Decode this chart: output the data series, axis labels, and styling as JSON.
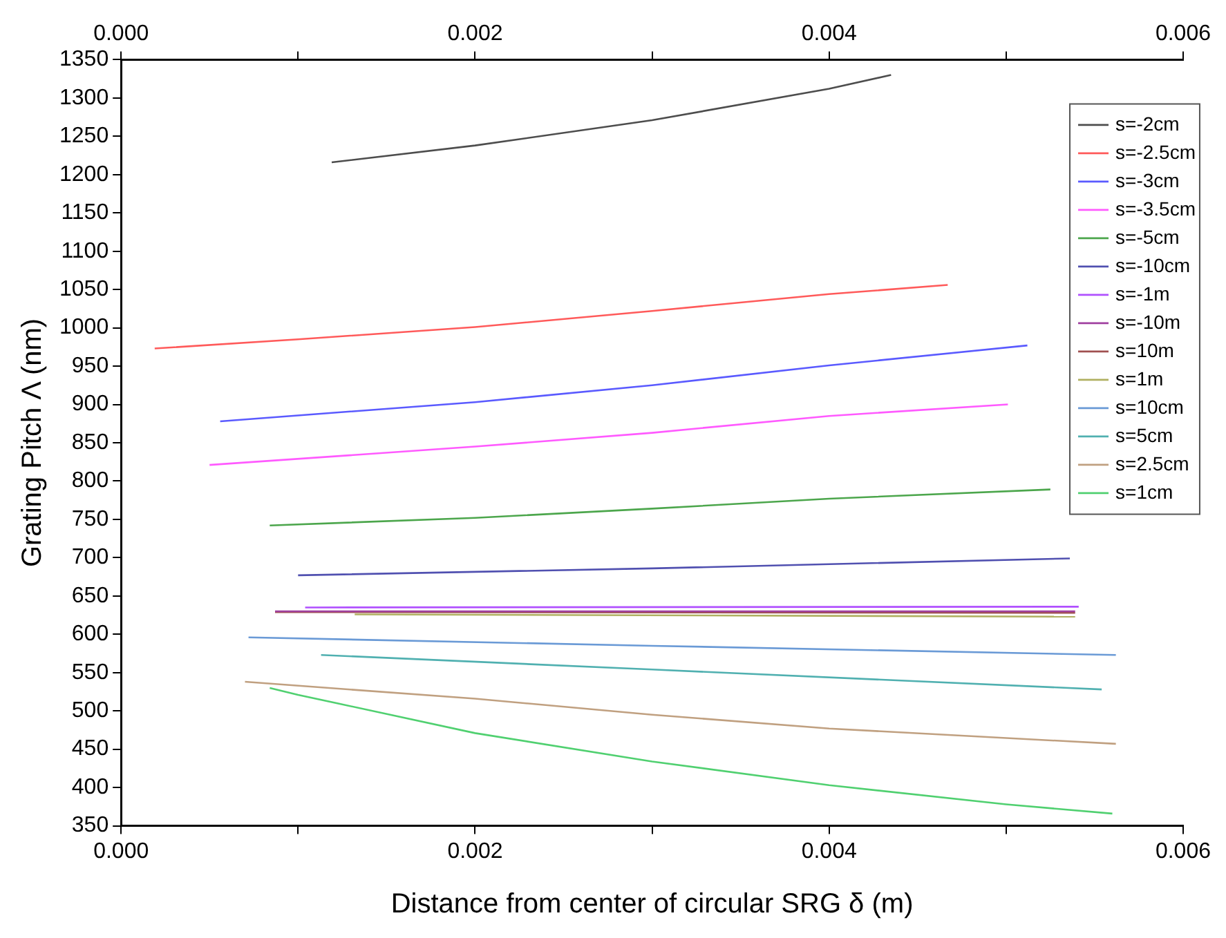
{
  "chart_data": {
    "type": "line",
    "xlabel": "Distance from center of circular SRG δ (m)",
    "ylabel": "Grating Pitch Λ (nm)",
    "xlim": [
      0,
      0.006
    ],
    "xticks": [
      {
        "value": 0,
        "label": "0.000"
      },
      {
        "value": 0.001,
        "label": null
      },
      {
        "value": 0.002,
        "label": "0.002"
      },
      {
        "value": 0.003,
        "label": null
      },
      {
        "value": 0.004,
        "label": "0.004"
      },
      {
        "value": 0.005,
        "label": null
      },
      {
        "value": 0.006,
        "label": "0.006"
      }
    ],
    "x2lim": [
      0,
      0.006
    ],
    "x2ticks": [
      {
        "value": 0,
        "label": "0.000"
      },
      {
        "value": 0.001,
        "label": null
      },
      {
        "value": 0.002,
        "label": "0.002"
      },
      {
        "value": 0.003,
        "label": null
      },
      {
        "value": 0.004,
        "label": "0.004"
      },
      {
        "value": 0.005,
        "label": null
      },
      {
        "value": 0.006,
        "label": "0.006"
      }
    ],
    "ylim": [
      350,
      1350
    ],
    "yticks": [
      350,
      400,
      450,
      500,
      550,
      600,
      650,
      700,
      750,
      800,
      850,
      900,
      950,
      1000,
      1050,
      1100,
      1150,
      1200,
      1250,
      1300,
      1350
    ],
    "grid": false,
    "legend": "top right",
    "marker": "none",
    "line_style": "solid",
    "series": [
      {
        "name": "s=-2cm",
        "color": "#4d4d4d",
        "x": [
          0.00119,
          0.002,
          0.003,
          0.004,
          0.00435
        ],
        "values": [
          1216,
          1238,
          1271,
          1312,
          1330
        ]
      },
      {
        "name": "s=-2.5cm",
        "color": "#ff5a5a",
        "x": [
          0.00019,
          0.001,
          0.002,
          0.003,
          0.004,
          0.00467
        ],
        "values": [
          973,
          985,
          1001,
          1022,
          1044,
          1056
        ]
      },
      {
        "name": "s=-3cm",
        "color": "#5a5aff",
        "x": [
          0.00056,
          0.002,
          0.003,
          0.004,
          0.00512
        ],
        "values": [
          878,
          903,
          925,
          951,
          977
        ]
      },
      {
        "name": "s=-3.5cm",
        "color": "#ff5aff",
        "x": [
          0.0005,
          0.002,
          0.003,
          0.004,
          0.00501
        ],
        "values": [
          821,
          845,
          863,
          885,
          900
        ]
      },
      {
        "name": "s=-5cm",
        "color": "#4ca64c",
        "x": [
          0.00084,
          0.002,
          0.003,
          0.004,
          0.00525
        ],
        "values": [
          742,
          752,
          764,
          777,
          789
        ]
      },
      {
        "name": "s=-10cm",
        "color": "#5050b0",
        "x": [
          0.001,
          0.003,
          0.00536
        ],
        "values": [
          677,
          686,
          699
        ]
      },
      {
        "name": "s=-1m",
        "color": "#b050ff",
        "x": [
          0.00104,
          0.00541
        ],
        "values": [
          635,
          636
        ]
      },
      {
        "name": "s=-10m",
        "color": "#a040a0",
        "x": [
          0.00087,
          0.00539
        ],
        "values": [
          630,
          630
        ]
      },
      {
        "name": "s=10m",
        "color": "#a05050",
        "x": [
          0.00087,
          0.00539
        ],
        "values": [
          629,
          628
        ]
      },
      {
        "name": "s=1m",
        "color": "#b0b060",
        "x": [
          0.00132,
          0.00539
        ],
        "values": [
          626,
          623
        ]
      },
      {
        "name": "s=10cm",
        "color": "#6a9ad6",
        "x": [
          0.00072,
          0.003,
          0.00562
        ],
        "values": [
          596,
          585,
          573
        ]
      },
      {
        "name": "s=5cm",
        "color": "#50b0b0",
        "x": [
          0.00113,
          0.003,
          0.00554
        ],
        "values": [
          573,
          554,
          528
        ]
      },
      {
        "name": "s=2.5cm",
        "color": "#c0a080",
        "x": [
          0.0007,
          0.002,
          0.003,
          0.004,
          0.00562
        ],
        "values": [
          538,
          516,
          495,
          477,
          457
        ]
      },
      {
        "name": "s=1cm",
        "color": "#50d070",
        "x": [
          0.00084,
          0.001,
          0.002,
          0.003,
          0.004,
          0.005,
          0.0056
        ],
        "values": [
          530,
          521,
          471,
          434,
          403,
          378,
          366
        ]
      }
    ]
  }
}
